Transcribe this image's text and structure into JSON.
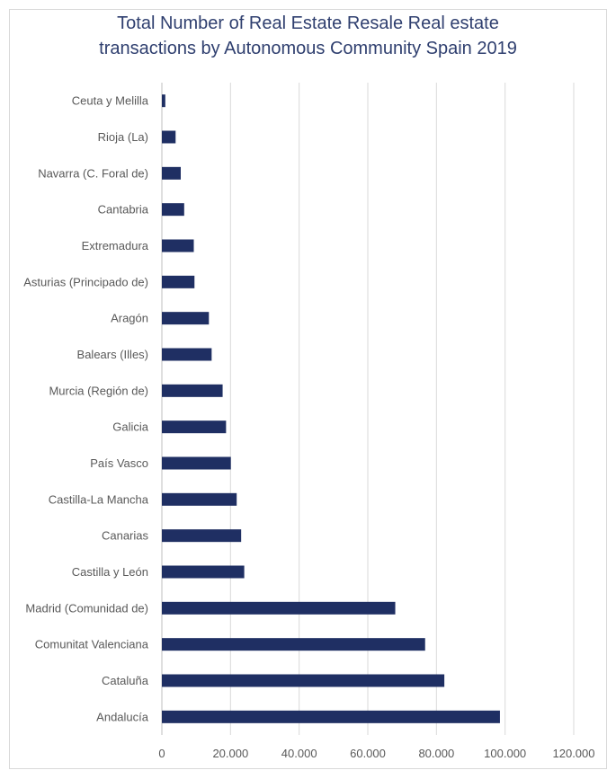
{
  "chart_data": {
    "type": "bar",
    "orientation": "horizontal",
    "title_line1": "Total Number of Real Estate Resale Real estate",
    "title_line2": "transactions by Autonomous Community Spain 2019",
    "xlabel": "",
    "ylabel": "",
    "xlim": [
      0,
      120000
    ],
    "x_ticks": [
      0,
      20000,
      40000,
      60000,
      80000,
      100000,
      120000
    ],
    "x_tick_labels": [
      "0",
      "20.000",
      "40.000",
      "60.000",
      "80.000",
      "100.000",
      "120.000"
    ],
    "grid": true,
    "legend": "none",
    "bar_color": "#1f2f63",
    "categories": [
      "Ceuta y Melilla",
      "Rioja (La)",
      "Navarra (C. Foral de)",
      "Cantabria",
      "Extremadura",
      "Asturias (Principado de)",
      "Aragón",
      "Balears (Illes)",
      "Murcia (Región de)",
      "Galicia",
      "País Vasco",
      "Castilla-La Mancha",
      "Canarias",
      "Castilla y León",
      "Madrid (Comunidad de)",
      "Comunitat Valenciana",
      "Cataluña",
      "Andalucía"
    ],
    "values": [
      1000,
      4000,
      5500,
      6500,
      9300,
      9500,
      13700,
      14500,
      17700,
      18700,
      20100,
      21800,
      23100,
      24000,
      68000,
      76700,
      82300,
      98500
    ]
  }
}
